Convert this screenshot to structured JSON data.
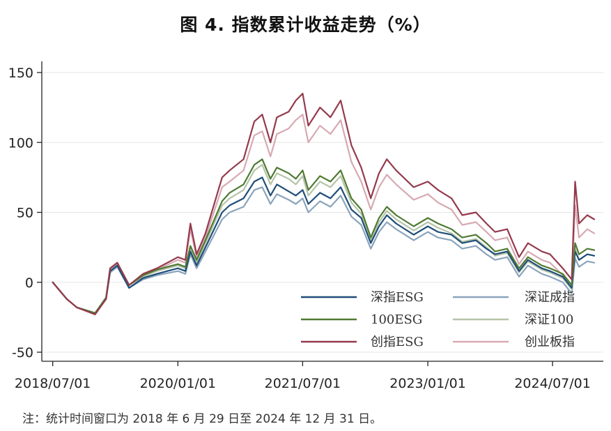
{
  "chart_data": {
    "type": "line",
    "title": "图 4. 指数累计收益走势（%）",
    "note": "注：统计时间窗口为 2018 年 6 月 29 日至 2024 年 12 月 31 日。",
    "xlabel": "",
    "ylabel": "",
    "ylim": [
      -50,
      150
    ],
    "yticks": [
      -50,
      0,
      50,
      100,
      150
    ],
    "xlim": [
      "2018-06-29",
      "2024-12-31"
    ],
    "xticks": [
      "2018/07/01",
      "2020/01/01",
      "2021/07/01",
      "2023/01/01",
      "2024/07/01"
    ],
    "grid": true,
    "legend_position": "bottom-right",
    "x": [
      "2018-07-01",
      "2018-09-01",
      "2018-10-15",
      "2019-01-03",
      "2019-02-20",
      "2019-03-10",
      "2019-04-10",
      "2019-06-01",
      "2019-08-01",
      "2019-10-01",
      "2020-01-01",
      "2020-02-03",
      "2020-02-25",
      "2020-03-23",
      "2020-05-01",
      "2020-07-13",
      "2020-08-15",
      "2020-10-15",
      "2020-12-01",
      "2021-01-05",
      "2021-02-10",
      "2021-03-10",
      "2021-05-01",
      "2021-06-01",
      "2021-07-01",
      "2021-07-26",
      "2021-09-15",
      "2021-10-31",
      "2021-12-15",
      "2022-01-31",
      "2022-03-15",
      "2022-04-26",
      "2022-06-01",
      "2022-07-05",
      "2022-08-15",
      "2022-10-31",
      "2023-01-01",
      "2023-02-15",
      "2023-04-15",
      "2023-06-01",
      "2023-07-31",
      "2023-09-15",
      "2023-10-23",
      "2023-12-15",
      "2024-02-05",
      "2024-03-15",
      "2024-05-15",
      "2024-06-20",
      "2024-08-15",
      "2024-09-23",
      "2024-10-08",
      "2024-10-25",
      "2024-11-30",
      "2024-12-31"
    ],
    "series": [
      {
        "name": "深指ESG",
        "color": "#1f4e79",
        "values": [
          0,
          -12,
          -18,
          -22,
          -12,
          8,
          12,
          -4,
          3,
          6,
          10,
          8,
          22,
          12,
          25,
          50,
          55,
          60,
          72,
          75,
          62,
          70,
          65,
          62,
          66,
          56,
          64,
          60,
          68,
          52,
          46,
          28,
          40,
          48,
          42,
          34,
          40,
          36,
          34,
          28,
          30,
          24,
          20,
          22,
          8,
          16,
          10,
          8,
          4,
          -4,
          22,
          16,
          20,
          19
        ]
      },
      {
        "name": "深证成指",
        "color": "#8aa4bb",
        "values": [
          0,
          -12,
          -18,
          -22,
          -12,
          7,
          11,
          -4,
          2,
          5,
          8,
          6,
          20,
          10,
          22,
          45,
          50,
          54,
          66,
          68,
          56,
          63,
          59,
          56,
          60,
          50,
          58,
          54,
          62,
          47,
          41,
          24,
          36,
          43,
          38,
          30,
          36,
          32,
          30,
          24,
          26,
          20,
          16,
          18,
          4,
          12,
          6,
          4,
          0,
          -8,
          17,
          11,
          15,
          14
        ]
      },
      {
        "name": "100ESG",
        "color": "#4f7a33",
        "values": [
          0,
          -12,
          -18,
          -22,
          -11,
          10,
          14,
          -2,
          5,
          9,
          13,
          11,
          26,
          16,
          30,
          58,
          64,
          70,
          84,
          88,
          74,
          82,
          78,
          74,
          80,
          66,
          76,
          72,
          80,
          60,
          52,
          32,
          46,
          54,
          48,
          40,
          46,
          42,
          38,
          32,
          34,
          28,
          22,
          24,
          10,
          18,
          12,
          10,
          6,
          -2,
          28,
          20,
          24,
          23
        ]
      },
      {
        "name": "深证100",
        "color": "#b5c4a8",
        "values": [
          0,
          -12,
          -18,
          -22,
          -11,
          9,
          13,
          -2,
          4,
          8,
          12,
          10,
          24,
          14,
          28,
          55,
          60,
          66,
          80,
          84,
          70,
          78,
          74,
          70,
          76,
          62,
          72,
          68,
          76,
          57,
          49,
          30,
          43,
          51,
          45,
          37,
          43,
          39,
          35,
          29,
          31,
          25,
          19,
          21,
          7,
          15,
          9,
          7,
          3,
          -5,
          24,
          16,
          20,
          19
        ]
      },
      {
        "name": "创指ESG",
        "color": "#943a4c",
        "values": [
          0,
          -12,
          -18,
          -23,
          -12,
          10,
          14,
          -2,
          6,
          10,
          18,
          16,
          42,
          20,
          35,
          75,
          80,
          88,
          115,
          120,
          100,
          118,
          122,
          130,
          135,
          112,
          125,
          118,
          130,
          98,
          82,
          60,
          78,
          88,
          80,
          68,
          72,
          66,
          60,
          48,
          50,
          42,
          36,
          38,
          18,
          28,
          22,
          20,
          10,
          2,
          72,
          42,
          48,
          45
        ]
      },
      {
        "name": "创业板指",
        "color": "#d7a9b2",
        "values": [
          0,
          -12,
          -18,
          -23,
          -12,
          9,
          13,
          -2,
          5,
          9,
          16,
          14,
          38,
          18,
          32,
          68,
          72,
          80,
          105,
          108,
          90,
          106,
          110,
          116,
          120,
          100,
          112,
          106,
          116,
          86,
          72,
          52,
          68,
          77,
          70,
          59,
          63,
          57,
          52,
          41,
          43,
          36,
          30,
          32,
          13,
          22,
          16,
          14,
          5,
          -2,
          55,
          32,
          38,
          35
        ]
      }
    ],
    "legend": {
      "items": [
        "深指ESG",
        "深证成指",
        "100ESG",
        "深证100",
        "创指ESG",
        "创业板指"
      ]
    }
  }
}
